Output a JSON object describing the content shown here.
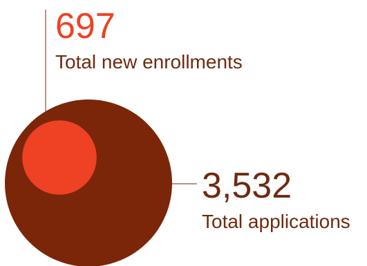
{
  "chart_data": {
    "type": "bubble",
    "title": "",
    "series": [
      {
        "key": "applications",
        "value": 3532,
        "value_label": "3,532",
        "label": "Total applications",
        "color": "#7b2609",
        "text_color": "#6e2a10"
      },
      {
        "key": "enrollments",
        "value": 697,
        "value_label": "697",
        "label": "Total new enrollments",
        "color": "#ef4123",
        "text_color": "#6e2a10",
        "value_color": "#ef4123"
      }
    ],
    "leader_line_color": "#6e2a10"
  }
}
